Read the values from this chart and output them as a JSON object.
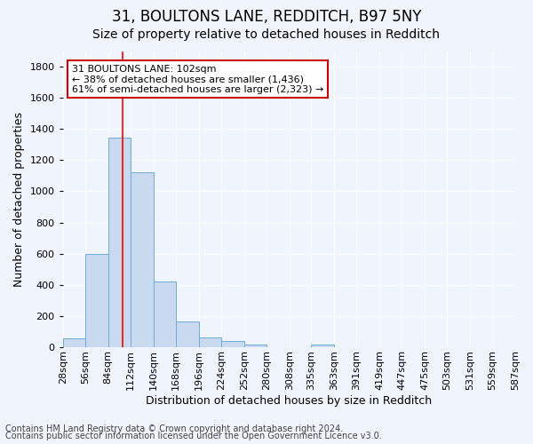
{
  "title_line1": "31, BOULTONS LANE, REDDITCH, B97 5NY",
  "title_line2": "Size of property relative to detached houses in Redditch",
  "xlabel": "Distribution of detached houses by size in Redditch",
  "ylabel": "Number of detached properties",
  "footnote1": "Contains HM Land Registry data © Crown copyright and database right 2024.",
  "footnote2": "Contains public sector information licensed under the Open Government Licence v3.0.",
  "annotation_line1": "31 BOULTONS LANE: 102sqm",
  "annotation_line2": "← 38% of detached houses are smaller (1,436)",
  "annotation_line3": "61% of semi-detached houses are larger (2,323) →",
  "bar_edges": [
    28,
    56,
    84,
    112,
    140,
    168,
    196,
    224,
    252,
    280,
    308,
    335,
    363,
    391,
    419,
    447,
    475,
    503,
    531,
    559,
    587
  ],
  "bar_heights": [
    60,
    597,
    1343,
    1120,
    422,
    168,
    65,
    38,
    20,
    0,
    0,
    20,
    0,
    0,
    0,
    0,
    0,
    0,
    0,
    0
  ],
  "bar_color": "#c8d9f0",
  "bar_edge_color": "#6baed6",
  "background_color": "#f0f4fc",
  "plot_bg_color": "#f0f4fc",
  "red_line_x": 102,
  "ylim": [
    0,
    1900
  ],
  "yticks": [
    0,
    200,
    400,
    600,
    800,
    1000,
    1200,
    1400,
    1600,
    1800
  ],
  "annotation_box_facecolor": "#ffffff",
  "annotation_box_edgecolor": "#cc0000",
  "title_fontsize": 12,
  "subtitle_fontsize": 10,
  "axis_label_fontsize": 9,
  "tick_fontsize": 8,
  "annotation_fontsize": 8,
  "footnote_fontsize": 7
}
